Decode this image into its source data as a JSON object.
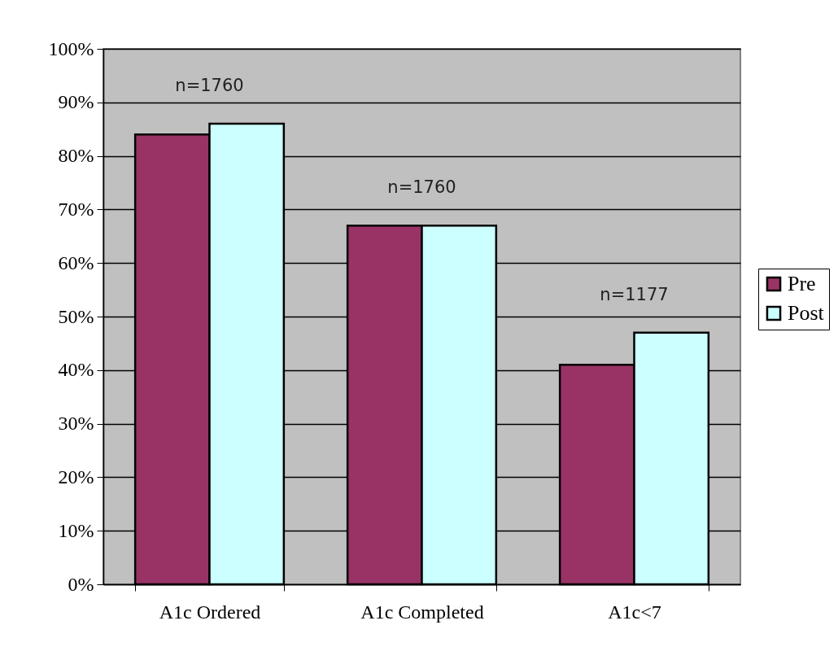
{
  "chart_data": {
    "type": "bar",
    "categories": [
      "A1c Ordered",
      "A1c Completed",
      "A1c<7"
    ],
    "series": [
      {
        "name": "Pre",
        "color": "#993366",
        "values": [
          84,
          67,
          41
        ]
      },
      {
        "name": "Post",
        "color": "#ccffff",
        "values": [
          86,
          67,
          47
        ]
      }
    ],
    "ylim": [
      0,
      100
    ],
    "yticks": [
      {
        "value": 0,
        "label": "0%"
      },
      {
        "value": 10,
        "label": "10%"
      },
      {
        "value": 20,
        "label": "20%"
      },
      {
        "value": 30,
        "label": "30%"
      },
      {
        "value": 40,
        "label": "40%"
      },
      {
        "value": 50,
        "label": "50%"
      },
      {
        "value": 60,
        "label": "60%"
      },
      {
        "value": 70,
        "label": "70%"
      },
      {
        "value": 80,
        "label": "80%"
      },
      {
        "value": 90,
        "label": "90%"
      },
      {
        "value": 100,
        "label": "100%"
      }
    ],
    "grid": "y",
    "legend": "right",
    "annotations": [
      "n=1760",
      "n=1760",
      "n=1177"
    ]
  }
}
